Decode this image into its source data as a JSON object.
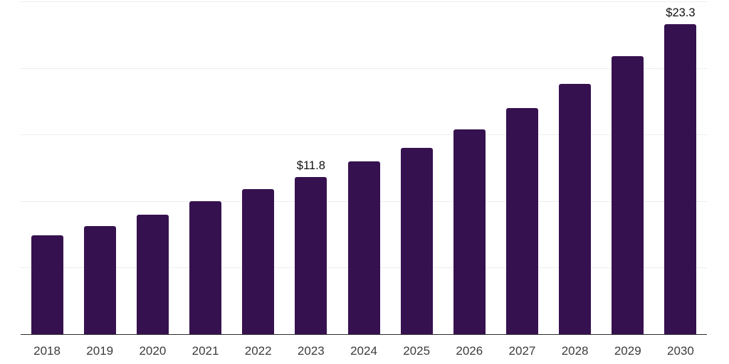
{
  "chart_data": {
    "type": "bar",
    "title": "",
    "xlabel": "",
    "ylabel": "",
    "categories": [
      "2018",
      "2019",
      "2020",
      "2021",
      "2022",
      "2023",
      "2024",
      "2025",
      "2026",
      "2027",
      "2028",
      "2029",
      "2030"
    ],
    "values": [
      7.4,
      8.1,
      9.0,
      10.0,
      10.9,
      11.8,
      13.0,
      14.0,
      15.4,
      17.0,
      18.8,
      20.9,
      23.3
    ],
    "data_labels": {
      "2023": "$11.8",
      "2030": "$23.3"
    },
    "ylim": [
      0,
      25
    ],
    "grid_step": 5,
    "grid": "horizontal",
    "y_tick_labels_visible": false,
    "legend": "none",
    "colors": {
      "bar": "#36114F",
      "grid": "#ededed",
      "axis": "#2b2b2b",
      "tick_text": "#3c3c3c",
      "data_label_text": "#101010",
      "background": "#ffffff"
    }
  }
}
